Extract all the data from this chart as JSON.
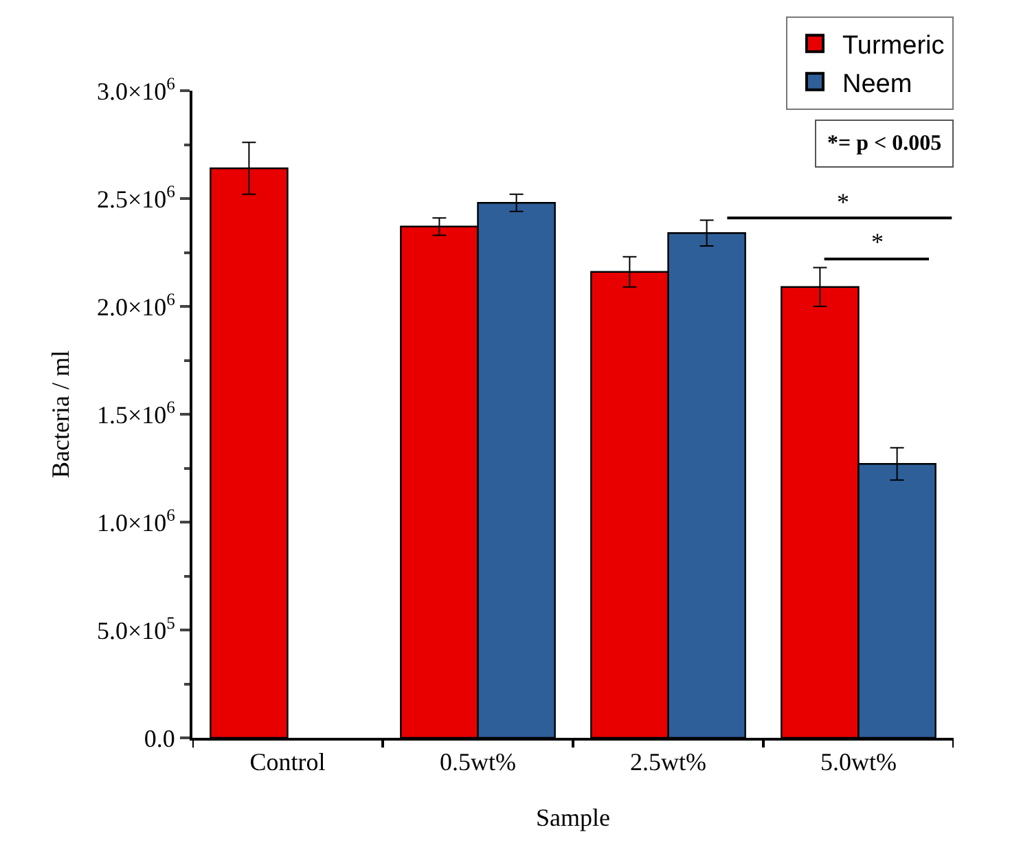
{
  "chart_data": {
    "type": "bar",
    "xlabel": "Sample",
    "ylabel": "Bacteria / ml",
    "categories": [
      "Control",
      "0.5wt%",
      "2.5wt%",
      "5.0wt%"
    ],
    "series": [
      {
        "name": "Turmeric",
        "color": "#e80000",
        "values": [
          2640000,
          2370000,
          2160000,
          2090000
        ],
        "errors": [
          120000,
          40000,
          70000,
          90000
        ]
      },
      {
        "name": "Neem",
        "color": "#2e5f99",
        "values": [
          null,
          2480000,
          2340000,
          1270000
        ],
        "errors": [
          null,
          40000,
          60000,
          75000
        ]
      }
    ],
    "ylim": [
      0,
      3000000
    ],
    "yticks": [
      {
        "value": 0,
        "label": "0.0"
      },
      {
        "value": 500000,
        "label": "5.0×10$^{5}$"
      },
      {
        "value": 1000000,
        "label": "1.0×10$^{6}$"
      },
      {
        "value": 1500000,
        "label": "1.5×10$^{6}$"
      },
      {
        "value": 2000000,
        "label": "2.0×10$^{6}$"
      },
      {
        "value": 2500000,
        "label": "2.5×10$^{6}$"
      },
      {
        "value": 3000000,
        "label": "3.0×10$^{6}$"
      }
    ],
    "legend": "top right",
    "annotations": [
      "*= p < 0.005",
      "*",
      "*"
    ]
  }
}
